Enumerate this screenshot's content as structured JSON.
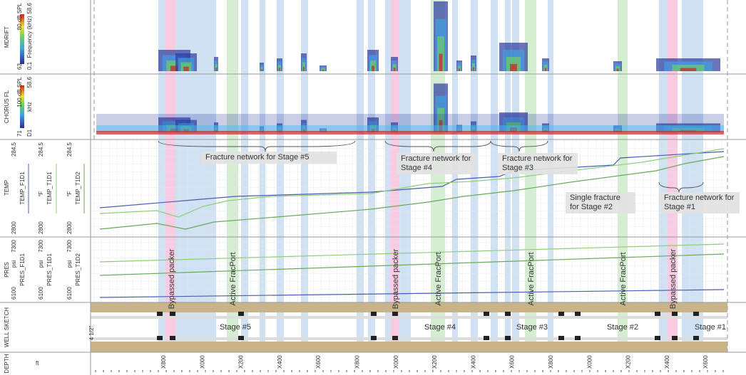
{
  "mdrift": {
    "title": "MDRIFT",
    "scale_min": "63",
    "scale_max": "80 dB SPL",
    "freq_min": "0.1",
    "freq_label": "Frequency (kHz)",
    "freq_max": "58.6"
  },
  "chorus": {
    "title": "CHORUS FL",
    "scale_min": "71",
    "scale_max": "100 dB SPL",
    "freq_min": "D1",
    "freq_label": "kHz",
    "freq_max": "58.6"
  },
  "temp": {
    "title": "TEMP",
    "curves": [
      {
        "name": "TEMP_F1D1",
        "min": "2800",
        "max": "284.5"
      },
      {
        "name": "TEMP_T1D1",
        "unit": "°F",
        "min": "2800",
        "max": "284.5"
      },
      {
        "name": "TEMP_T1D2",
        "unit": "°F",
        "min": "2800",
        "max": "284.5"
      }
    ]
  },
  "pres": {
    "title": "PRES",
    "curves": [
      {
        "name": "PRES_F1D1",
        "unit": "psi",
        "min": "6100",
        "max": "7300"
      },
      {
        "name": "PRES_T1D1",
        "unit": "psi",
        "min": "6100",
        "max": "7300"
      },
      {
        "name": "PRES_T1D2",
        "unit": "psi",
        "min": "6100",
        "max": "7300"
      }
    ]
  },
  "well_sketch": {
    "title": "WELL SKETCH",
    "casing": "4 1/2\"",
    "stages": [
      "Stage #5",
      "Stage #4",
      "Stage #3",
      "Stage #2",
      "Stage #1"
    ]
  },
  "depth": {
    "title": "DEPTH",
    "unit": "ft",
    "labels": [
      "X800",
      "X000",
      "X200",
      "X400",
      "X600",
      "X800",
      "X000",
      "X200",
      "X400",
      "X600",
      "X800",
      "X000",
      "X200",
      "X400",
      "X600"
    ]
  },
  "annotations": [
    "Fracture network for Stage #5",
    "Fracture network for Stage #4",
    "Fracture network for Stage #3",
    "Single fracture for Stage #2",
    "Fracture network for Stage #1"
  ],
  "markers": [
    "Bypassed packer",
    "Active FracPort",
    "Bypassed packer",
    "Active FracPort",
    "Active FracPort",
    "Active FracPort",
    "Bypassed packer"
  ]
}
